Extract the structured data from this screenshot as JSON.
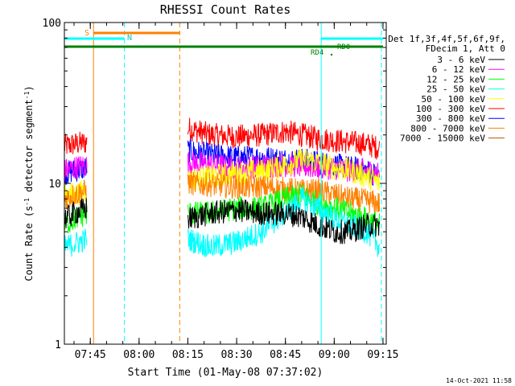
{
  "chart_data": {
    "type": "line",
    "title": "RHESSI Count Rates",
    "xlabel": "Start Time (01-May-08 07:37:02)",
    "ylabel_main": "Count Rate (s",
    "ylabel_sup1": "-1",
    "ylabel_mid": " detector segment",
    "ylabel_sup2": "-1",
    "ylabel_end": ")",
    "y_scale": "log",
    "ylim": [
      1,
      100
    ],
    "y_ticks": [
      {
        "value": 1,
        "label": "1"
      },
      {
        "value": 10,
        "label": "10"
      },
      {
        "value": 100,
        "label": "100"
      }
    ],
    "xlim": [
      "07:37:02",
      "09:16:00"
    ],
    "x_ticks": [
      "07:45",
      "08:00",
      "08:15",
      "08:30",
      "08:45",
      "09:00",
      "09:15"
    ],
    "legend_header": [
      "Det 1f,3f,4f,5f,6f,9f,",
      "FDecim 1, Att 0"
    ],
    "legend_placement": "right",
    "series": [
      {
        "name": "3 - 6 keV",
        "color": "#000000",
        "x": [
          "07:37",
          "07:40",
          "07:44",
          "07:45",
          "08:15",
          "08:22",
          "08:30",
          "08:38",
          "08:45",
          "08:50",
          "08:55",
          "09:00",
          "09:05",
          "09:10",
          "09:14"
        ],
        "values": [
          6.0,
          6.5,
          7.0,
          null,
          6.0,
          6.5,
          6.8,
          6.5,
          6.5,
          6.2,
          5.5,
          5.0,
          5.0,
          5.5,
          5.5
        ]
      },
      {
        "name": "6 - 12 keV",
        "color": "#ff00ff",
        "x": [
          "07:37",
          "07:40",
          "07:44",
          "07:45",
          "08:15",
          "08:22",
          "08:30",
          "08:38",
          "08:45",
          "08:50",
          "08:55",
          "09:00",
          "09:05",
          "09:10",
          "09:14"
        ],
        "values": [
          12,
          12.5,
          13,
          null,
          13.5,
          13.0,
          12.5,
          12.8,
          13.0,
          12.8,
          12.5,
          12.5,
          12.0,
          12.0,
          11.5
        ]
      },
      {
        "name": "12 - 25 keV",
        "color": "#00ff00",
        "x": [
          "07:37",
          "07:40",
          "07:44",
          "07:45",
          "08:15",
          "08:22",
          "08:30",
          "08:38",
          "08:45",
          "08:50",
          "08:55",
          "09:00",
          "09:05",
          "09:10",
          "09:14"
        ],
        "values": [
          5.5,
          6.0,
          6.5,
          null,
          6.5,
          6.5,
          7.0,
          7.0,
          8.0,
          8.5,
          7.5,
          7.0,
          6.5,
          6.0,
          5.5
        ]
      },
      {
        "name": "25 - 50 keV",
        "color": "#00ffff",
        "x": [
          "07:37",
          "07:40",
          "07:44",
          "07:45",
          "08:15",
          "08:22",
          "08:30",
          "08:38",
          "08:45",
          "08:50",
          "08:55",
          "09:00",
          "09:05",
          "09:10",
          "09:14"
        ],
        "values": [
          4.0,
          4.2,
          4.5,
          null,
          4.5,
          4.0,
          4.3,
          5.0,
          6.5,
          8.0,
          7.0,
          6.0,
          5.5,
          5.0,
          4.0
        ]
      },
      {
        "name": "50 - 100 keV",
        "color": "#ffff00",
        "x": [
          "07:37",
          "07:40",
          "07:44",
          "07:45",
          "08:15",
          "08:22",
          "08:30",
          "08:38",
          "08:45",
          "08:50",
          "08:55",
          "09:00",
          "09:05",
          "09:10",
          "09:14"
        ],
        "values": [
          8.5,
          8.5,
          9.0,
          null,
          10.5,
          11.0,
          11.5,
          12.0,
          13.0,
          14.0,
          13.5,
          12.5,
          12.0,
          11.0,
          10.0
        ]
      },
      {
        "name": "100 - 300 keV",
        "color": "#ff0000",
        "x": [
          "07:37",
          "07:40",
          "07:44",
          "07:45",
          "08:15",
          "08:22",
          "08:30",
          "08:38",
          "08:45",
          "08:50",
          "08:55",
          "09:00",
          "09:05",
          "09:10",
          "09:14"
        ],
        "values": [
          17,
          17.5,
          18,
          null,
          22,
          20,
          19.5,
          20,
          21,
          20,
          19,
          18.5,
          18,
          17.5,
          16.5
        ]
      },
      {
        "name": "300 - 800 keV",
        "color": "#0000ff",
        "x": [
          "07:37",
          "07:40",
          "07:44",
          "07:45",
          "08:15",
          "08:22",
          "08:30",
          "08:38",
          "08:45",
          "08:50",
          "08:55",
          "09:00",
          "09:05",
          "09:10",
          "09:14"
        ],
        "values": [
          11.5,
          12.0,
          12.5,
          null,
          16,
          15,
          14.5,
          14.5,
          14.0,
          14.0,
          13.5,
          13.0,
          12.5,
          12.0,
          11.0
        ]
      },
      {
        "name": "800 - 7000 keV",
        "color": "#ff8000",
        "x": [
          "07:37",
          "07:40",
          "07:44",
          "07:45",
          "08:15",
          "08:22",
          "08:30",
          "08:38",
          "08:45",
          "08:50",
          "08:55",
          "09:00",
          "09:05",
          "09:10",
          "09:14"
        ],
        "values": [
          8.0,
          8.5,
          9.0,
          null,
          10.0,
          9.8,
          9.5,
          9.5,
          9.2,
          9.0,
          9.0,
          8.5,
          8.0,
          7.8,
          7.5
        ]
      },
      {
        "name": "7000 - 15000 keV",
        "color": "#b35900",
        "x": [],
        "values": []
      }
    ],
    "annotations": {
      "s_label": "S",
      "n_label": "N",
      "rd0_label": "RD0",
      "rd4_label": "RD4",
      "timestamp": "14-Oct-2021 11:58"
    },
    "flag_bars": [
      {
        "label": "S",
        "color": "#ff8000",
        "start": "07:46:00",
        "end": "08:12:30"
      },
      {
        "label": "N",
        "color": "#00ffff",
        "start": "07:37:02",
        "end": "07:55:30"
      },
      {
        "label": "N",
        "color": "#00ffff",
        "start": "08:56:00",
        "end": "09:15:00"
      },
      {
        "label": "RD0",
        "color": "#008000",
        "start": "07:37:02",
        "end": "09:15:00"
      }
    ],
    "vlines": [
      {
        "time": "07:46:00",
        "color": "#ff8000",
        "style": "solid"
      },
      {
        "time": "07:55:30",
        "color": "#00ffff",
        "style": "dashed"
      },
      {
        "time": "08:12:30",
        "color": "#ff8000",
        "style": "dashed"
      },
      {
        "time": "08:56:00",
        "color": "#00ffff",
        "style": "solid"
      },
      {
        "time": "09:14:30",
        "color": "#00ffff",
        "style": "dashed"
      }
    ]
  }
}
